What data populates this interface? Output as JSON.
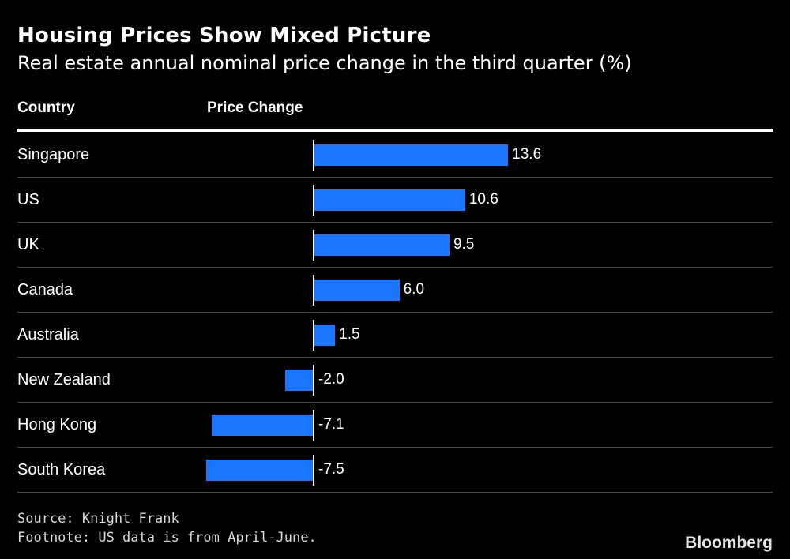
{
  "header": {
    "title": "Housing Prices Show Mixed Picture",
    "subtitle": "Real estate annual nominal price change in the third quarter (%)"
  },
  "table": {
    "col_country": "Country",
    "col_change": "Price Change"
  },
  "chart_data": {
    "type": "bar",
    "orientation": "horizontal",
    "categories": [
      "Singapore",
      "US",
      "UK",
      "Canada",
      "Australia",
      "New Zealand",
      "Hong Kong",
      "South Korea"
    ],
    "values": [
      13.6,
      10.6,
      9.5,
      6.0,
      1.5,
      -2.0,
      -7.1,
      -7.5
    ],
    "value_labels": [
      "13.6",
      "10.6",
      "9.5",
      "6.0",
      "1.5",
      "-2.0",
      "-7.1",
      "-7.5"
    ],
    "title": "Housing Prices Show Mixed Picture",
    "xlabel": "Price Change",
    "ylabel": "Country",
    "xlim": [
      -7.5,
      13.6
    ],
    "grid": false
  },
  "footer": {
    "source": "Source: Knight Frank",
    "footnote": "Footnote: US data is from April-June.",
    "brand": "Bloomberg"
  },
  "colors": {
    "background": "#000000",
    "bar": "#1a75ff",
    "text": "#ffffff"
  }
}
